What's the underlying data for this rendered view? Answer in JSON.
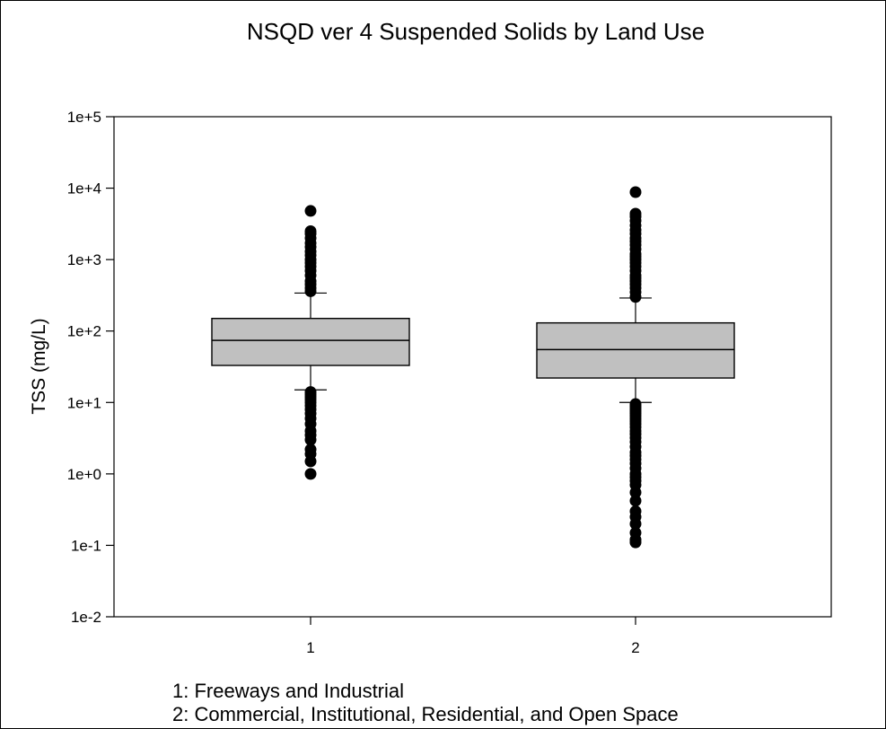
{
  "chart_data": {
    "type": "box",
    "title": "NSQD ver 4 Suspended Solids by Land Use",
    "xlabel": "",
    "ylabel": "TSS (mg/L)",
    "yscale": "log",
    "ylim": [
      0.01,
      100000
    ],
    "ytick_labels": [
      "1e-2",
      "1e-1",
      "1e+0",
      "1e+1",
      "1e+2",
      "1e+3",
      "1e+4",
      "1e+5"
    ],
    "categories": [
      "1",
      "2"
    ],
    "grid": false,
    "box_color": "#c0c0c0",
    "boxes": [
      {
        "category": "1",
        "whisker_low": 15,
        "q1": 33,
        "median": 74,
        "q3": 150,
        "whisker_high": 340,
        "outliers": [
          1.0,
          1.5,
          1.9,
          2.2,
          3.0,
          3.5,
          4.0,
          5.0,
          6.0,
          7.0,
          8.0,
          9.0,
          10.0,
          11.0,
          12.0,
          13.0,
          14.0,
          360,
          400,
          450,
          500,
          600,
          700,
          800,
          900,
          1000,
          1150,
          1300,
          1500,
          1700,
          2000,
          2300,
          2500,
          4800
        ]
      },
      {
        "category": "2",
        "whisker_low": 10,
        "q1": 22,
        "median": 55,
        "q3": 130,
        "whisker_high": 290,
        "outliers": [
          0.11,
          0.12,
          0.15,
          0.2,
          0.25,
          0.3,
          0.42,
          0.55,
          0.7,
          0.8,
          0.9,
          1.0,
          1.2,
          1.4,
          1.6,
          1.8,
          2.0,
          2.4,
          2.8,
          3.2,
          3.6,
          4.0,
          4.5,
          5.0,
          5.5,
          6.0,
          6.5,
          7.0,
          7.5,
          8.0,
          8.5,
          9.0,
          9.5,
          300,
          350,
          400,
          450,
          500,
          550,
          600,
          700,
          800,
          900,
          1000,
          1100,
          1200,
          1400,
          1600,
          1800,
          2000,
          2300,
          2600,
          3000,
          3500,
          4000,
          4400,
          8800
        ]
      }
    ]
  },
  "legend": {
    "lines": [
      "1: Freeways and Industrial",
      "2: Commercial, Institutional, Residential, and Open Space"
    ]
  }
}
